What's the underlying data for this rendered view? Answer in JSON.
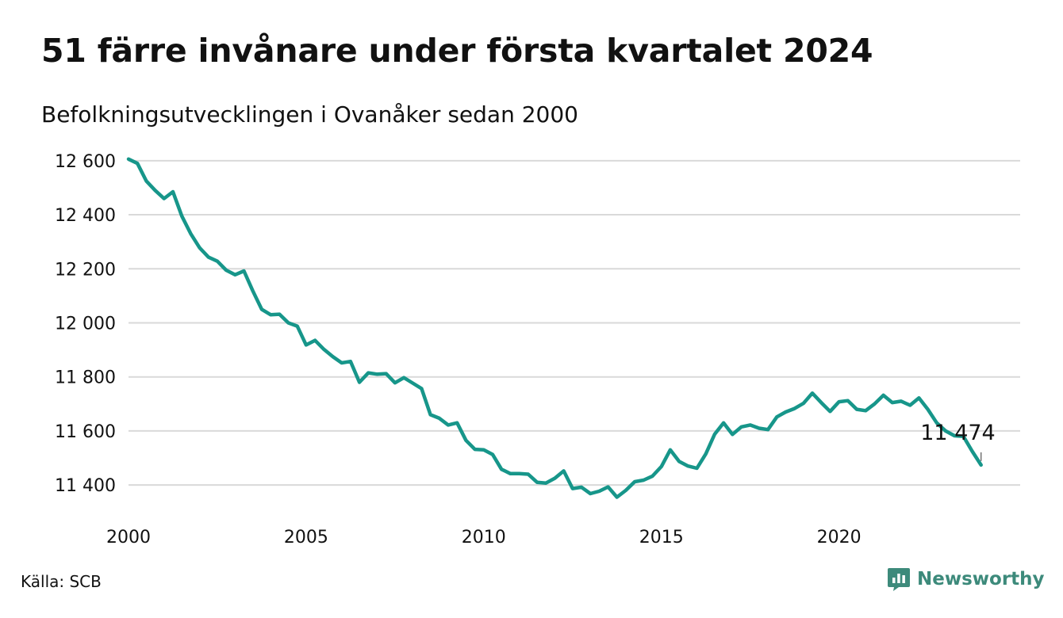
{
  "title": "51 färre invånare under första kvartalet 2024",
  "subtitle": "Befolkningsutvecklingen i Ovanåker sedan 2000",
  "source": "Källa: SCB",
  "brand": {
    "name": "Newsworthy",
    "icon": "newsworthy-logo-icon",
    "color": "#3d8a7b"
  },
  "colors": {
    "line": "#17968a",
    "grid": "#d9d9d9",
    "text": "#111111"
  },
  "chart_data": {
    "type": "line",
    "title": "51 färre invånare under första kvartalet 2024",
    "subtitle": "Befolkningsutvecklingen i Ovanåker sedan 2000",
    "xlabel": "",
    "ylabel": "",
    "grid": "horizontal",
    "legend": "none",
    "xlim": [
      2000,
      2025.1
    ],
    "ylim": [
      11330,
      12620
    ],
    "x_ticks": [
      2000,
      2005,
      2010,
      2015,
      2020
    ],
    "x_tick_labels": [
      "2000",
      "2005",
      "2010",
      "2015",
      "2020"
    ],
    "y_ticks": [
      11400,
      11600,
      11800,
      12000,
      12200,
      12400,
      12600
    ],
    "y_tick_labels": [
      "11 400",
      "11 600",
      "11 800",
      "12 000",
      "12 200",
      "12 400",
      "12 600"
    ],
    "annotation": {
      "label": "11 474",
      "x": 2024.0,
      "y": 11474
    },
    "series": [
      {
        "x": [
          2000.0,
          2000.25,
          2000.5,
          2000.75,
          2001.0,
          2001.25,
          2001.5,
          2001.75,
          2002.0,
          2002.25,
          2002.5,
          2002.75,
          2003.0,
          2003.25,
          2003.5,
          2003.75,
          2004.0,
          2004.25,
          2004.5,
          2004.75,
          2005.0,
          2005.25,
          2005.5,
          2005.75,
          2006.0,
          2006.25,
          2006.5,
          2006.75,
          2007.0,
          2007.25,
          2007.5,
          2007.75,
          2008.0,
          2008.25,
          2008.5,
          2008.75,
          2009.0,
          2009.25,
          2009.5,
          2009.75,
          2010.0,
          2010.25,
          2010.5,
          2010.75,
          2011.0,
          2011.25,
          2011.5,
          2011.75,
          2012.0,
          2012.25,
          2012.5,
          2012.75,
          2013.0,
          2013.25,
          2013.5,
          2013.75,
          2014.0,
          2014.25,
          2014.5,
          2014.75,
          2015.0,
          2015.25,
          2015.5,
          2015.75,
          2016.0,
          2016.25,
          2016.5,
          2016.75,
          2017.0,
          2017.25,
          2017.5,
          2017.75,
          2018.0,
          2018.25,
          2018.5,
          2018.75,
          2019.0,
          2019.25,
          2019.5,
          2019.75,
          2020.0,
          2020.25,
          2020.5,
          2020.75,
          2021.0,
          2021.25,
          2021.5,
          2021.75,
          2022.0,
          2022.25,
          2022.5,
          2022.75,
          2023.0,
          2023.25,
          2023.5,
          2023.75,
          2024.0
        ],
        "y": [
          12606,
          12590,
          12525,
          12490,
          12460,
          12485,
          12395,
          12330,
          12278,
          12243,
          12228,
          12195,
          12178,
          12192,
          12118,
          12050,
          12030,
          12032,
          12000,
          11988,
          11918,
          11935,
          11902,
          11875,
          11852,
          11857,
          11780,
          11815,
          11810,
          11812,
          11778,
          11797,
          11777,
          11757,
          11660,
          11647,
          11622,
          11630,
          11565,
          11532,
          11530,
          11513,
          11458,
          11442,
          11442,
          11440,
          11410,
          11407,
          11425,
          11452,
          11387,
          11392,
          11368,
          11377,
          11393,
          11355,
          11380,
          11412,
          11418,
          11433,
          11468,
          11530,
          11487,
          11470,
          11462,
          11515,
          11588,
          11630,
          11587,
          11615,
          11622,
          11610,
          11605,
          11652,
          11670,
          11683,
          11702,
          11740,
          11705,
          11672,
          11708,
          11712,
          11680,
          11675,
          11700,
          11732,
          11705,
          11710,
          11695,
          11722,
          11680,
          11630,
          11600,
          11582,
          11580,
          11525,
          11474
        ]
      }
    ]
  }
}
